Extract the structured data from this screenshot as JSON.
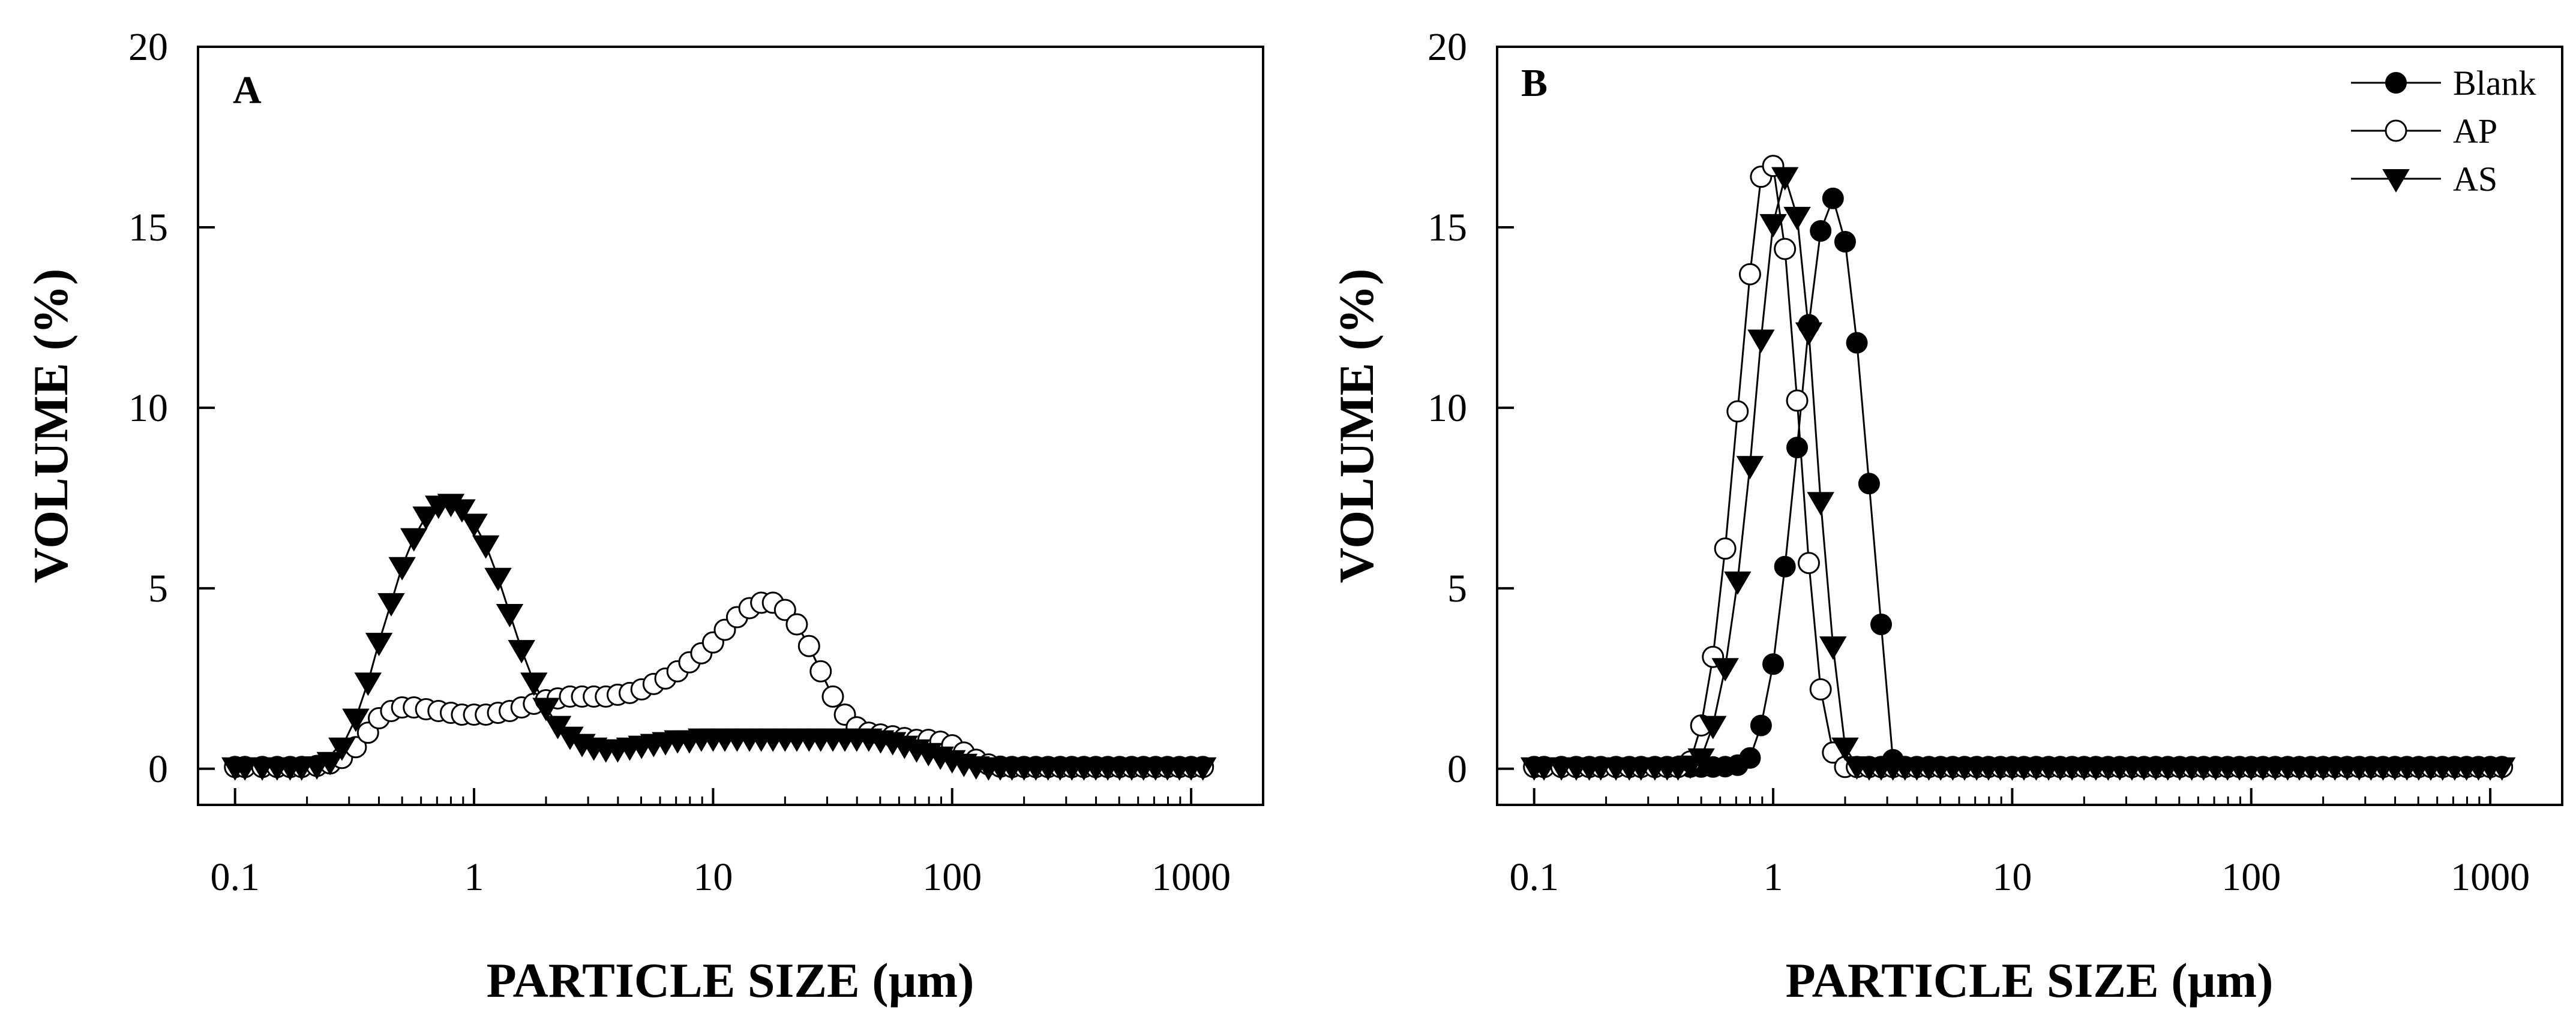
{
  "chart_data": [
    {
      "type": "scatter",
      "panel": "A",
      "xlabel": "PARTICLE SIZE (µm)",
      "ylabel": "VOLUME (%)",
      "xscale": "log",
      "xlim": [
        0.07,
        2000
      ],
      "ylim": [
        -1,
        20
      ],
      "xticks": [
        0.1,
        1,
        10,
        100,
        1000
      ],
      "xtick_labels": [
        "0.1",
        "1",
        "10",
        "100",
        "1000"
      ],
      "yticks": [
        0,
        5,
        10,
        15,
        20
      ],
      "ytick_labels": [
        "0",
        "5",
        "10",
        "15",
        "20"
      ],
      "grid": false,
      "legend": null,
      "x": [
        0.1,
        0.11,
        0.13,
        0.15,
        0.17,
        0.19,
        0.22,
        0.25,
        0.28,
        0.32,
        0.36,
        0.4,
        0.45,
        0.5,
        0.56,
        0.63,
        0.71,
        0.8,
        0.89,
        1.0,
        1.12,
        1.26,
        1.41,
        1.58,
        1.78,
        2.0,
        2.24,
        2.52,
        2.83,
        3.17,
        3.56,
        3.99,
        4.48,
        5.02,
        5.64,
        6.32,
        7.1,
        7.96,
        8.93,
        10.0,
        11.2,
        12.6,
        14.2,
        15.9,
        17.8,
        20.0,
        22.4,
        25.2,
        28.2,
        31.7,
        35.6,
        39.9,
        44.8,
        50.2,
        56.4,
        63.2,
        71.0,
        79.6,
        89.3,
        100.0,
        112,
        126,
        142,
        159,
        178,
        200,
        224,
        252,
        283,
        317,
        356,
        399,
        448,
        502,
        564,
        632,
        710,
        796,
        893,
        1000,
        1120
      ],
      "series": [
        {
          "name": "Blank",
          "marker": "filled-circle",
          "values": [
            0.05,
            0.05,
            0.05,
            0.05,
            0.05,
            0.05,
            0.08,
            0.15,
            0.3,
            0.6,
            1.0,
            1.4,
            1.6,
            1.7,
            1.7,
            1.65,
            1.6,
            1.55,
            1.5,
            1.5,
            1.5,
            1.55,
            1.6,
            1.7,
            1.8,
            1.9,
            1.95,
            2.0,
            2.0,
            2.0,
            2.0,
            2.05,
            2.1,
            2.2,
            2.35,
            2.5,
            2.7,
            2.95,
            3.2,
            3.5,
            3.85,
            4.2,
            4.45,
            4.6,
            4.6,
            4.4,
            4.0,
            3.4,
            2.7,
            2.0,
            1.5,
            1.15,
            1.0,
            0.95,
            0.9,
            0.85,
            0.8,
            0.8,
            0.75,
            0.65,
            0.45,
            0.25,
            0.12,
            0.06,
            0.05,
            0.05,
            0.05,
            0.05,
            0.05,
            0.05,
            0.05,
            0.05,
            0.05,
            0.05,
            0.05,
            0.05,
            0.05,
            0.05,
            0.05,
            0.05,
            0.05
          ]
        },
        {
          "name": "AP",
          "marker": "open-circle",
          "values": [
            0.05,
            0.05,
            0.05,
            0.05,
            0.05,
            0.05,
            0.08,
            0.15,
            0.3,
            0.6,
            1.0,
            1.4,
            1.6,
            1.7,
            1.7,
            1.65,
            1.6,
            1.55,
            1.5,
            1.5,
            1.5,
            1.55,
            1.6,
            1.7,
            1.8,
            1.9,
            1.95,
            2.0,
            2.0,
            2.0,
            2.0,
            2.05,
            2.1,
            2.2,
            2.35,
            2.5,
            2.7,
            2.95,
            3.2,
            3.5,
            3.85,
            4.2,
            4.45,
            4.6,
            4.6,
            4.4,
            4.0,
            3.4,
            2.7,
            2.0,
            1.5,
            1.15,
            1.0,
            0.95,
            0.9,
            0.85,
            0.8,
            0.8,
            0.75,
            0.65,
            0.45,
            0.25,
            0.12,
            0.06,
            0.05,
            0.05,
            0.05,
            0.05,
            0.05,
            0.05,
            0.05,
            0.05,
            0.05,
            0.05,
            0.05,
            0.05,
            0.05,
            0.05,
            0.05,
            0.05,
            0.05
          ]
        },
        {
          "name": "AS",
          "marker": "filled-triangle-down",
          "values": [
            0.05,
            0.05,
            0.05,
            0.05,
            0.05,
            0.05,
            0.08,
            0.2,
            0.6,
            1.4,
            2.4,
            3.5,
            4.6,
            5.6,
            6.4,
            7.0,
            7.3,
            7.35,
            7.2,
            6.8,
            6.2,
            5.3,
            4.3,
            3.3,
            2.4,
            1.7,
            1.2,
            0.9,
            0.7,
            0.6,
            0.55,
            0.55,
            0.6,
            0.65,
            0.7,
            0.75,
            0.8,
            0.8,
            0.85,
            0.85,
            0.85,
            0.85,
            0.85,
            0.85,
            0.85,
            0.85,
            0.85,
            0.85,
            0.85,
            0.85,
            0.85,
            0.85,
            0.85,
            0.8,
            0.75,
            0.65,
            0.55,
            0.45,
            0.35,
            0.25,
            0.15,
            0.08,
            0.05,
            0.05,
            0.05,
            0.05,
            0.05,
            0.05,
            0.05,
            0.05,
            0.05,
            0.05,
            0.05,
            0.05,
            0.05,
            0.05,
            0.05,
            0.05,
            0.05,
            0.05,
            0.05
          ]
        }
      ]
    },
    {
      "type": "scatter",
      "panel": "B",
      "xlabel": "PARTICLE SIZE (µm)",
      "ylabel": "VOLUME (%)",
      "xscale": "log",
      "xlim": [
        0.07,
        2000
      ],
      "ylim": [
        -1,
        20
      ],
      "xticks": [
        0.1,
        1,
        10,
        100,
        1000
      ],
      "xtick_labels": [
        "0.1",
        "1",
        "10",
        "100",
        "1000"
      ],
      "yticks": [
        0,
        5,
        10,
        15,
        20
      ],
      "ytick_labels": [
        "0",
        "5",
        "10",
        "15",
        "20"
      ],
      "grid": false,
      "legend": "top-right",
      "x": [
        0.1,
        0.11,
        0.13,
        0.15,
        0.17,
        0.19,
        0.22,
        0.25,
        0.28,
        0.32,
        0.36,
        0.4,
        0.45,
        0.5,
        0.56,
        0.63,
        0.71,
        0.8,
        0.89,
        1.0,
        1.12,
        1.26,
        1.41,
        1.58,
        1.78,
        2.0,
        2.24,
        2.52,
        2.83,
        3.17,
        3.56,
        3.99,
        4.48,
        5.02,
        5.64,
        6.32,
        7.1,
        7.96,
        8.93,
        10.0,
        11.2,
        12.6,
        14.2,
        15.9,
        17.8,
        20.0,
        22.4,
        25.2,
        28.2,
        31.7,
        35.6,
        39.9,
        44.8,
        50.2,
        56.4,
        63.2,
        71.0,
        79.6,
        89.3,
        100.0,
        112,
        126,
        142,
        159,
        178,
        200,
        224,
        252,
        283,
        317,
        356,
        399,
        448,
        502,
        564,
        632,
        710,
        796,
        893,
        1000,
        1120
      ],
      "series": [
        {
          "name": "Blank",
          "marker": "filled-circle",
          "values": [
            0.05,
            0.05,
            0.05,
            0.05,
            0.05,
            0.05,
            0.05,
            0.05,
            0.05,
            0.05,
            0.05,
            0.05,
            0.05,
            0.05,
            0.05,
            0.06,
            0.1,
            0.3,
            1.2,
            2.9,
            5.6,
            8.9,
            12.3,
            14.9,
            15.8,
            14.6,
            11.8,
            7.9,
            4.0,
            0.25,
            0.05,
            0.05,
            0.05,
            0.05,
            0.05,
            0.05,
            0.05,
            0.05,
            0.05,
            0.05,
            0.05,
            0.05,
            0.05,
            0.05,
            0.05,
            0.05,
            0.05,
            0.05,
            0.05,
            0.05,
            0.05,
            0.05,
            0.05,
            0.05,
            0.05,
            0.05,
            0.05,
            0.05,
            0.05,
            0.05,
            0.05,
            0.05,
            0.05,
            0.05,
            0.05,
            0.05,
            0.05,
            0.05,
            0.05,
            0.05,
            0.05,
            0.05,
            0.05,
            0.05,
            0.05,
            0.05,
            0.05,
            0.05,
            0.05,
            0.05,
            0.05
          ]
        },
        {
          "name": "AP",
          "marker": "open-circle",
          "values": [
            0.05,
            0.05,
            0.05,
            0.05,
            0.05,
            0.05,
            0.05,
            0.05,
            0.05,
            0.05,
            0.05,
            0.05,
            0.2,
            1.2,
            3.1,
            6.1,
            9.9,
            13.7,
            16.4,
            16.7,
            14.4,
            10.2,
            5.7,
            2.2,
            0.45,
            0.05,
            0.05,
            0.05,
            0.05,
            0.05,
            0.05,
            0.05,
            0.05,
            0.05,
            0.05,
            0.05,
            0.05,
            0.05,
            0.05,
            0.05,
            0.05,
            0.05,
            0.05,
            0.05,
            0.05,
            0.05,
            0.05,
            0.05,
            0.05,
            0.05,
            0.05,
            0.05,
            0.05,
            0.05,
            0.05,
            0.05,
            0.05,
            0.05,
            0.05,
            0.05,
            0.05,
            0.05,
            0.05,
            0.05,
            0.05,
            0.05,
            0.05,
            0.05,
            0.05,
            0.05,
            0.05,
            0.05,
            0.05,
            0.05,
            0.05,
            0.05,
            0.05,
            0.05,
            0.05,
            0.05,
            0.05
          ]
        },
        {
          "name": "AS",
          "marker": "filled-triangle-down",
          "values": [
            0.05,
            0.05,
            0.05,
            0.05,
            0.05,
            0.05,
            0.05,
            0.05,
            0.05,
            0.05,
            0.05,
            0.05,
            0.1,
            0.3,
            1.2,
            2.8,
            5.2,
            8.4,
            11.9,
            15.1,
            16.4,
            15.3,
            12.1,
            7.4,
            3.4,
            0.6,
            0.08,
            0.05,
            0.05,
            0.05,
            0.05,
            0.05,
            0.05,
            0.05,
            0.05,
            0.05,
            0.05,
            0.05,
            0.05,
            0.05,
            0.05,
            0.05,
            0.05,
            0.05,
            0.05,
            0.05,
            0.05,
            0.05,
            0.05,
            0.05,
            0.05,
            0.05,
            0.05,
            0.05,
            0.05,
            0.05,
            0.05,
            0.05,
            0.05,
            0.05,
            0.05,
            0.05,
            0.05,
            0.05,
            0.05,
            0.05,
            0.05,
            0.05,
            0.05,
            0.05,
            0.05,
            0.05,
            0.05,
            0.05,
            0.05,
            0.05,
            0.05,
            0.05,
            0.05,
            0.05,
            0.05
          ]
        }
      ]
    }
  ]
}
